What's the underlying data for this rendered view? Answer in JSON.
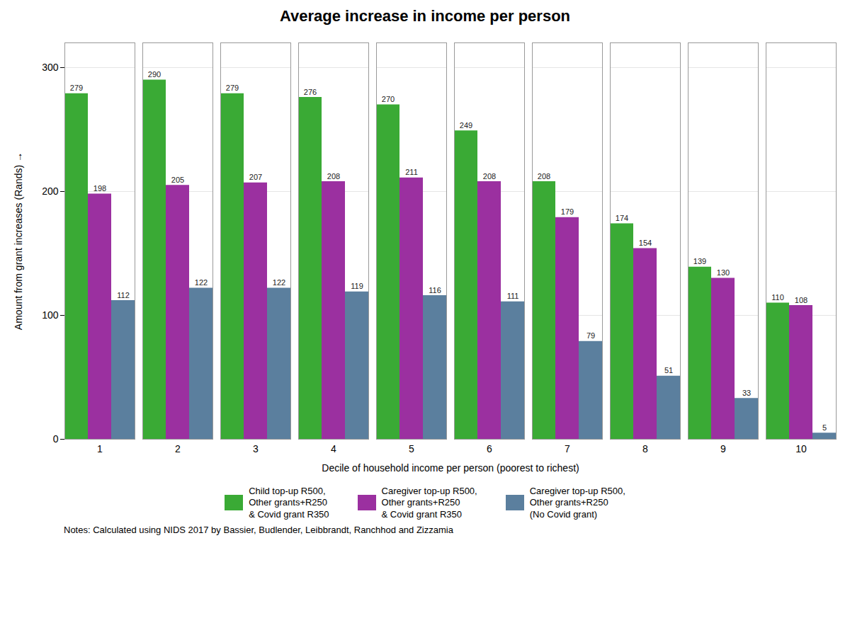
{
  "chart_data": {
    "type": "bar",
    "title": "Average increase in income per person",
    "xlabel": "Decile of household income per person (poorest to richest)",
    "ylabel": "Amount from grant increases (Rands)",
    "categories": [
      "1",
      "2",
      "3",
      "4",
      "5",
      "6",
      "7",
      "8",
      "9",
      "10"
    ],
    "series": [
      {
        "name": "Child top-up R500,\nOther grants+R250\n& Covid grant R350",
        "color": "#3aaa35",
        "values": [
          279,
          290,
          279,
          276,
          270,
          249,
          208,
          174,
          139,
          110
        ]
      },
      {
        "name": "Caregiver top-up R500,\nOther grants+R250\n& Covid grant R350",
        "color": "#9b30a0",
        "values": [
          198,
          205,
          207,
          208,
          211,
          208,
          179,
          154,
          130,
          108
        ]
      },
      {
        "name": "Caregiver top-up R500,\nOther grants+R250\n(No Covid grant)",
        "color": "#5b7f9e",
        "values": [
          112,
          122,
          122,
          119,
          116,
          111,
          79,
          51,
          33,
          5
        ]
      }
    ],
    "ylim": [
      0,
      320
    ],
    "yticks": [
      0,
      100,
      200,
      300
    ],
    "grid": true,
    "data_labels": true,
    "legend": "bottom",
    "annotations": [
      "Notes: Calculated using NIDS 2017 by Bassier, Budlender, Leibbrandt, Ranchhod and Zizzamia"
    ]
  }
}
